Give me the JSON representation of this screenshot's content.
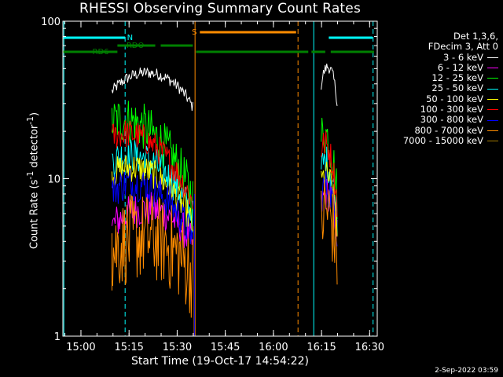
{
  "title": "RHESSI Observing Summary Count Rates",
  "xlabel": "Start Time (19-Oct-17 14:54:22)",
  "ylabel_main": "Count Rate (s",
  "ylabel_sup1": "-1",
  "ylabel_mid": " detector",
  "ylabel_sup2": "-1",
  "ylabel_end": ")",
  "legend_header": [
    "Det 1,3,6,",
    "FDecim 3, Att 0"
  ],
  "timestamp": "2-Sep-2022 03:59",
  "chart_data": {
    "type": "line",
    "yscale": "log",
    "ylim": [
      1,
      100
    ],
    "xlim_minutes_after_start": [
      0,
      98
    ],
    "xticks": [
      {
        "label": "15:00",
        "minutes": 5.63
      },
      {
        "label": "15:15",
        "minutes": 20.63
      },
      {
        "label": "15:30",
        "minutes": 35.63
      },
      {
        "label": "15:45",
        "minutes": 50.63
      },
      {
        "label": "16:00",
        "minutes": 65.63
      },
      {
        "label": "16:15",
        "minutes": 80.63
      },
      {
        "label": "16:30",
        "minutes": 95.63
      }
    ],
    "yticks": [
      {
        "label": "1",
        "value": 1
      },
      {
        "label": "10",
        "value": 10
      },
      {
        "label": "100",
        "value": 100
      }
    ],
    "series": [
      {
        "name": "3 - 6 keV",
        "color": "#ffffff",
        "segments": [
          [
            15.3,
            40.5,
            47,
            45
          ],
          [
            80.5,
            85.5,
            52,
            48
          ]
        ],
        "noise": 0.04
      },
      {
        "name": "6 - 12 keV",
        "color": "#ff00ff",
        "segments": [
          [
            15.3,
            40.5,
            6.5,
            6.0
          ],
          [
            80.5,
            85.5,
            8.5,
            7
          ]
        ],
        "noise": 0.12
      },
      {
        "name": "12 - 25 keV",
        "color": "#00ff00",
        "segments": [
          [
            15.3,
            40.5,
            30,
            12
          ],
          [
            80.5,
            85.5,
            24,
            12
          ]
        ],
        "noise": 0.16
      },
      {
        "name": "25 - 50 keV",
        "color": "#00ffff",
        "segments": [
          [
            15.3,
            40.5,
            17,
            9
          ],
          [
            80.5,
            85.5,
            15,
            9
          ]
        ],
        "noise": 0.12
      },
      {
        "name": "50 - 100 keV",
        "color": "#ffff00",
        "segments": [
          [
            15.3,
            40.5,
            14,
            8
          ],
          [
            80.5,
            85.5,
            12,
            8
          ]
        ],
        "noise": 0.1
      },
      {
        "name": "100 - 300 keV",
        "color": "#ff0000",
        "segments": [
          [
            15.3,
            40.5,
            24,
            11
          ],
          [
            80.5,
            85.5,
            20,
            11
          ]
        ],
        "noise": 0.1
      },
      {
        "name": "300 - 800 keV",
        "color": "#0000ff",
        "segments": [
          [
            15.3,
            40.5,
            11,
            6.5
          ],
          [
            80.5,
            85.5,
            10,
            7
          ]
        ],
        "noise": 0.12
      },
      {
        "name": "800 - 7000 keV",
        "color": "#ff8c00",
        "segments": [
          [
            15.3,
            40.5,
            4.5,
            3.8
          ],
          [
            80.5,
            85.5,
            7,
            5
          ]
        ],
        "noise": 0.3
      },
      {
        "name": "7000 - 15000 keV",
        "color": "#a07800",
        "segments": [],
        "noise": 0
      }
    ],
    "state_bars": [
      {
        "label": "N",
        "color": "#00ffff",
        "level": 0.5,
        "spans": [
          [
            0,
            19.4
          ],
          [
            82.9,
            96.5
          ]
        ]
      },
      {
        "label": "RDO",
        "color": "#008000",
        "level": 0.7,
        "spans": [
          [
            17,
            28.8
          ],
          [
            30.5,
            40.5
          ]
        ]
      },
      {
        "label": "RD6",
        "color": "#008000",
        "level": 0.7,
        "spans": [
          [
            0,
            17
          ],
          [
            41.5,
            76.5
          ],
          [
            77.5,
            81.8
          ],
          [
            83.5,
            97
          ]
        ]
      },
      {
        "label": "S",
        "color": "#ff8c00",
        "level": 0.5,
        "spans": [
          [
            42.7,
            72.7
          ]
        ]
      }
    ],
    "vlines": [
      {
        "minutes": 0.3,
        "color": "#00ffff",
        "style": "solid"
      },
      {
        "minutes": 19.4,
        "color": "#00ffff",
        "style": "dashed"
      },
      {
        "minutes": 41.2,
        "color": "#ff8c00",
        "style": "solid"
      },
      {
        "minutes": 73.3,
        "color": "#ff8c00",
        "style": "dashed"
      },
      {
        "minutes": 78.2,
        "color": "#00ffff",
        "style": "solid"
      },
      {
        "minutes": 96.7,
        "color": "#00ffff",
        "style": "dashed"
      }
    ]
  }
}
